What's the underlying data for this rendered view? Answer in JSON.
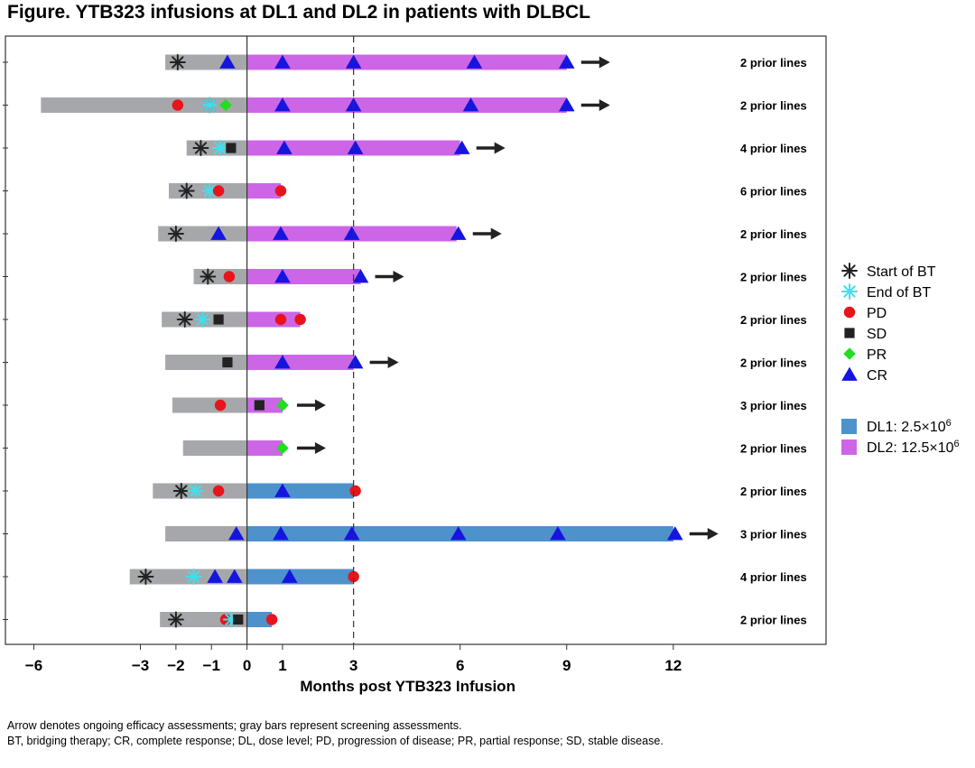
{
  "chart_data": {
    "type": "swimmer",
    "title": "Figure. YTB323 infusions at DL1 and DL2 in patients with DLBCL",
    "xlabel": "Months post YTB323 Infusion",
    "xlim": [
      -6.8,
      16.3
    ],
    "xticks": [
      {
        "value": -6,
        "label": "−6"
      },
      {
        "value": -3,
        "label": "−3"
      },
      {
        "value": -2,
        "label": "−2"
      },
      {
        "value": -1,
        "label": "−1"
      },
      {
        "value": 0,
        "label": "0"
      },
      {
        "value": 1,
        "label": "1"
      },
      {
        "value": 3,
        "label": "3"
      },
      {
        "value": 6,
        "label": "6"
      },
      {
        "value": 9,
        "label": "9"
      },
      {
        "value": 12,
        "label": "12"
      }
    ],
    "reference_lines": [
      {
        "x": 0,
        "style": "solid"
      },
      {
        "x": 3,
        "style": "dashed"
      }
    ],
    "legend": {
      "markers": [
        {
          "key": "start_bt",
          "label": "Start of BT",
          "color": "#222222",
          "shape": "asterisk"
        },
        {
          "key": "end_bt",
          "label": "End of BT",
          "color": "#3EE0EE",
          "shape": "asterisk"
        },
        {
          "key": "pd",
          "label": "PD",
          "color": "#E8141B",
          "shape": "circle"
        },
        {
          "key": "sd",
          "label": "SD",
          "color": "#222222",
          "shape": "square"
        },
        {
          "key": "pr",
          "label": "PR",
          "color": "#22DD22",
          "shape": "diamond"
        },
        {
          "key": "cr",
          "label": "CR",
          "color": "#1515E0",
          "shape": "triangle"
        }
      ],
      "dose_levels": [
        {
          "key": "DL1",
          "label_main": "DL1: 2.5×10",
          "label_sup": "6",
          "color": "#4E92CC"
        },
        {
          "key": "DL2",
          "label_main": "DL2: 12.5×10",
          "label_sup": "6",
          "color": "#CC66E6"
        }
      ]
    },
    "screening_color": "#A6A7AA",
    "patients": [
      {
        "prior_lines": "2 prior lines",
        "dose": "DL2",
        "screen_start": -2.3,
        "end": 9.0,
        "ongoing": true,
        "events": [
          {
            "t": -1.95,
            "type": "start_bt"
          },
          {
            "t": -0.55,
            "type": "cr"
          },
          {
            "t": 1.0,
            "type": "cr"
          },
          {
            "t": 3.0,
            "type": "cr"
          },
          {
            "t": 6.4,
            "type": "cr"
          },
          {
            "t": 9.0,
            "type": "cr"
          }
        ]
      },
      {
        "prior_lines": "2 prior lines",
        "dose": "DL2",
        "screen_start": -5.8,
        "end": 9.0,
        "ongoing": true,
        "events": [
          {
            "t": -1.95,
            "type": "pd"
          },
          {
            "t": -1.05,
            "type": "start_bt"
          },
          {
            "t": -1.05,
            "type": "end_bt"
          },
          {
            "t": -0.6,
            "type": "pr"
          },
          {
            "t": 1.0,
            "type": "cr"
          },
          {
            "t": 3.0,
            "type": "cr"
          },
          {
            "t": 6.3,
            "type": "cr"
          },
          {
            "t": 9.0,
            "type": "cr"
          }
        ]
      },
      {
        "prior_lines": "4 prior lines",
        "dose": "DL2",
        "screen_start": -1.7,
        "end": 6.0,
        "ongoing": true,
        "events": [
          {
            "t": -1.3,
            "type": "start_bt"
          },
          {
            "t": -0.75,
            "type": "end_bt"
          },
          {
            "t": -0.45,
            "type": "sd"
          },
          {
            "t": 1.05,
            "type": "cr"
          },
          {
            "t": 3.05,
            "type": "cr"
          },
          {
            "t": 6.05,
            "type": "cr"
          }
        ]
      },
      {
        "prior_lines": "6 prior lines",
        "dose": "DL2",
        "screen_start": -2.2,
        "end": 0.95,
        "ongoing": false,
        "events": [
          {
            "t": -1.7,
            "type": "start_bt"
          },
          {
            "t": -1.05,
            "type": "end_bt"
          },
          {
            "t": -0.8,
            "type": "pd"
          },
          {
            "t": 0.95,
            "type": "pd"
          }
        ]
      },
      {
        "prior_lines": "2 prior lines",
        "dose": "DL2",
        "screen_start": -2.5,
        "end": 5.9,
        "ongoing": true,
        "events": [
          {
            "t": -2.0,
            "type": "start_bt"
          },
          {
            "t": -0.8,
            "type": "cr"
          },
          {
            "t": 0.95,
            "type": "cr"
          },
          {
            "t": 2.95,
            "type": "cr"
          },
          {
            "t": 5.95,
            "type": "cr"
          }
        ]
      },
      {
        "prior_lines": "2 prior lines",
        "dose": "DL2",
        "screen_start": -1.5,
        "end": 3.2,
        "ongoing": true,
        "events": [
          {
            "t": -1.1,
            "type": "start_bt"
          },
          {
            "t": -0.5,
            "type": "pd"
          },
          {
            "t": 1.0,
            "type": "cr"
          },
          {
            "t": 3.2,
            "type": "cr"
          }
        ]
      },
      {
        "prior_lines": "2 prior lines",
        "dose": "DL2",
        "screen_start": -2.4,
        "end": 1.5,
        "ongoing": false,
        "events": [
          {
            "t": -1.75,
            "type": "start_bt"
          },
          {
            "t": -1.25,
            "type": "end_bt"
          },
          {
            "t": -0.8,
            "type": "sd"
          },
          {
            "t": 0.95,
            "type": "pd"
          },
          {
            "t": 1.5,
            "type": "pd"
          }
        ]
      },
      {
        "prior_lines": "2 prior lines",
        "dose": "DL2",
        "screen_start": -2.3,
        "end": 3.0,
        "ongoing": true,
        "events": [
          {
            "t": -0.55,
            "type": "sd"
          },
          {
            "t": 1.0,
            "type": "cr"
          },
          {
            "t": 3.05,
            "type": "cr"
          }
        ]
      },
      {
        "prior_lines": "3 prior lines",
        "dose": "DL2",
        "screen_start": -2.1,
        "end": 1.0,
        "ongoing": true,
        "events": [
          {
            "t": -0.75,
            "type": "pd"
          },
          {
            "t": 0.35,
            "type": "sd"
          },
          {
            "t": 1.0,
            "type": "pr"
          }
        ]
      },
      {
        "prior_lines": "2 prior lines",
        "dose": "DL2",
        "screen_start": -1.8,
        "end": 1.0,
        "ongoing": true,
        "events": [
          {
            "t": 1.0,
            "type": "pr"
          }
        ]
      },
      {
        "prior_lines": "2 prior lines",
        "dose": "DL1",
        "screen_start": -2.65,
        "end": 3.0,
        "ongoing": false,
        "events": [
          {
            "t": -1.85,
            "type": "start_bt"
          },
          {
            "t": -1.45,
            "type": "end_bt"
          },
          {
            "t": -0.8,
            "type": "pd"
          },
          {
            "t": 1.0,
            "type": "cr"
          },
          {
            "t": 3.05,
            "type": "pd"
          }
        ]
      },
      {
        "prior_lines": "3 prior lines",
        "dose": "DL1",
        "screen_start": -2.3,
        "end": 12.0,
        "ongoing": true,
        "events": [
          {
            "t": -0.3,
            "type": "cr"
          },
          {
            "t": 0.95,
            "type": "cr"
          },
          {
            "t": 2.95,
            "type": "cr"
          },
          {
            "t": 5.95,
            "type": "cr"
          },
          {
            "t": 8.75,
            "type": "cr"
          },
          {
            "t": 12.05,
            "type": "cr"
          }
        ]
      },
      {
        "prior_lines": "4 prior lines",
        "dose": "DL1",
        "screen_start": -3.3,
        "end": 3.0,
        "ongoing": false,
        "events": [
          {
            "t": -2.85,
            "type": "start_bt"
          },
          {
            "t": -1.5,
            "type": "end_bt"
          },
          {
            "t": -0.9,
            "type": "cr"
          },
          {
            "t": -0.35,
            "type": "cr"
          },
          {
            "t": 1.2,
            "type": "cr"
          },
          {
            "t": 3.0,
            "type": "pd"
          }
        ]
      },
      {
        "prior_lines": "2 prior lines",
        "dose": "DL1",
        "screen_start": -2.45,
        "end": 0.7,
        "ongoing": false,
        "events": [
          {
            "t": -2.0,
            "type": "start_bt"
          },
          {
            "t": -0.6,
            "type": "pd"
          },
          {
            "t": -0.45,
            "type": "end_bt"
          },
          {
            "t": -0.25,
            "type": "sd"
          },
          {
            "t": 0.7,
            "type": "pd"
          }
        ]
      }
    ]
  },
  "footnotes": {
    "line1": "Arrow denotes ongoing efficacy assessments; gray bars represent screening assessments.",
    "line2": "BT, bridging therapy; CR, complete response; DL, dose level; PD, progression of disease; PR, partial response; SD, stable disease."
  }
}
